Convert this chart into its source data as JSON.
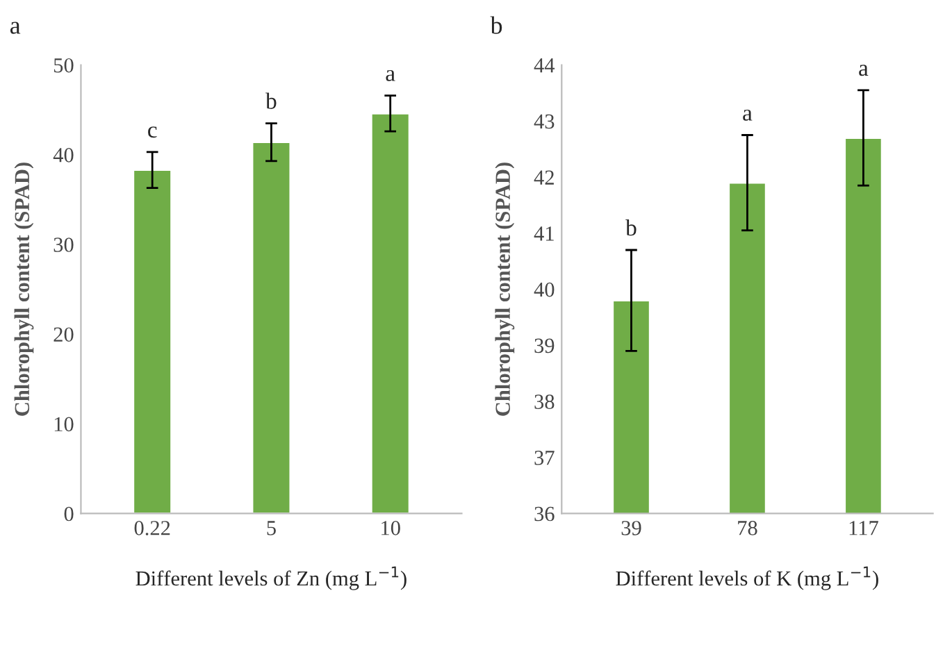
{
  "chart_data": [
    {
      "type": "bar",
      "annotations": [
        "a",
        {
          "text": "c",
          "x": "0.22",
          "y": 40.3
        },
        {
          "text": "b",
          "x": "5",
          "y": 43.5
        },
        {
          "text": "a",
          "x": "10",
          "y": 46.6
        }
      ],
      "xlabel": "Different levels of Zn (mg L$^{−1}$)",
      "ylabel": "Chlorophyll content (SPAD)",
      "categories": [
        "0.22",
        "5",
        "10"
      ],
      "values": [
        38.3,
        41.4,
        44.6
      ],
      "errors": [
        2.0,
        2.1,
        2.0
      ],
      "color": "#70ad47",
      "ylim": [
        0,
        50
      ],
      "yticks": [
        0,
        10,
        20,
        30,
        40,
        50
      ],
      "grid": false,
      "legend": false
    },
    {
      "type": "bar",
      "annotations": [
        "b",
        {
          "text": "b",
          "x": "39",
          "y": 40.7
        },
        {
          "text": "a",
          "x": "78",
          "y": 42.75
        },
        {
          "text": "a",
          "x": "117",
          "y": 43.55
        }
      ],
      "xlabel": "Different levels of K (mg L$^{−1}$)",
      "ylabel": "Chlorophyll content (SPAD)",
      "categories": [
        "39",
        "78",
        "117"
      ],
      "values": [
        39.8,
        41.9,
        42.7
      ],
      "errors": [
        0.9,
        0.85,
        0.85
      ],
      "color": "#70ad47",
      "ylim": [
        36,
        44
      ],
      "yticks": [
        36,
        37,
        38,
        39,
        40,
        41,
        42,
        43,
        44
      ],
      "grid": false,
      "legend": false
    }
  ]
}
